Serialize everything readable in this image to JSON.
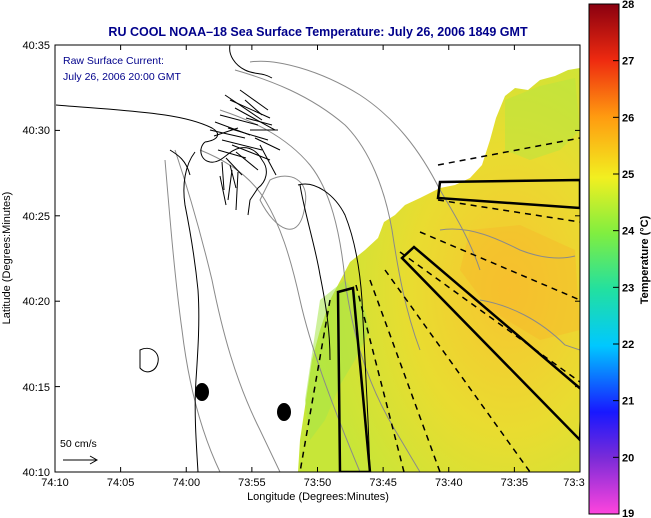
{
  "title": "RU COOL  NOAA–18  Sea Surface Temperature:  July 26, 2006 1849 GMT",
  "subtitle_line1": "Raw Surface Current:",
  "subtitle_line2": "July 26, 2006 20:00 GMT",
  "scale_label": "50 cm/s",
  "xlabel": "Longitude (Degrees:Minutes)",
  "ylabel": "Latitude (Degrees:Minutes)",
  "colorbar_label": "Temperature (°C)",
  "x_ticks": [
    "74:10",
    "74:05",
    "74:00",
    "73:55",
    "73:50",
    "73:45",
    "73:40",
    "73:35",
    "73:3"
  ],
  "y_ticks": [
    "40:35",
    "40:30",
    "40:25",
    "40:20",
    "40:15",
    "40:10"
  ],
  "colorbar_ticks": [
    "28",
    "27",
    "26",
    "25",
    "24",
    "23",
    "22",
    "21",
    "20",
    "19"
  ],
  "colorbar_range": [
    19,
    28
  ],
  "colors": {
    "title": "#00008b",
    "frame": "#000000",
    "land_outline": "#000000",
    "bathymetry": "#8a8a8a"
  }
}
